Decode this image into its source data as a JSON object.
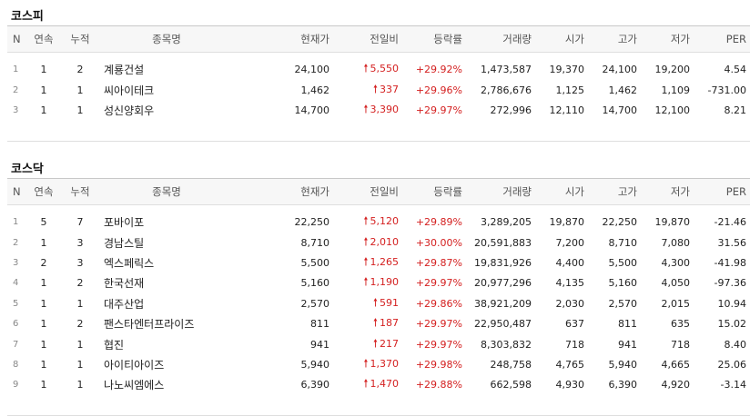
{
  "columns": {
    "n": "N",
    "streak": "연속",
    "cumulative": "누적",
    "name": "종목명",
    "price": "현재가",
    "change": "전일비",
    "rate": "등락률",
    "volume": "거래량",
    "open": "시가",
    "high": "고가",
    "low": "저가",
    "per": "PER"
  },
  "kospi": {
    "title": "코스피",
    "rows": [
      {
        "n": "1",
        "streak": "1",
        "cumulative": "2",
        "name": "계룡건설",
        "price": "24,100",
        "change": "5,550",
        "rate": "+29.92%",
        "volume": "1,473,587",
        "open": "19,370",
        "high": "24,100",
        "low": "19,200",
        "per": "4.54"
      },
      {
        "n": "2",
        "streak": "1",
        "cumulative": "1",
        "name": "씨아이테크",
        "price": "1,462",
        "change": "337",
        "rate": "+29.96%",
        "volume": "2,786,676",
        "open": "1,125",
        "high": "1,462",
        "low": "1,109",
        "per": "-731.00"
      },
      {
        "n": "3",
        "streak": "1",
        "cumulative": "1",
        "name": "성신양회우",
        "price": "14,700",
        "change": "3,390",
        "rate": "+29.97%",
        "volume": "272,996",
        "open": "12,110",
        "high": "14,700",
        "low": "12,100",
        "per": "8.21"
      }
    ]
  },
  "kosdaq": {
    "title": "코스닥",
    "rows": [
      {
        "n": "1",
        "streak": "5",
        "cumulative": "7",
        "name": "포바이포",
        "price": "22,250",
        "change": "5,120",
        "rate": "+29.89%",
        "volume": "3,289,205",
        "open": "19,870",
        "high": "22,250",
        "low": "19,870",
        "per": "-21.46"
      },
      {
        "n": "2",
        "streak": "1",
        "cumulative": "3",
        "name": "경남스틸",
        "price": "8,710",
        "change": "2,010",
        "rate": "+30.00%",
        "volume": "20,591,883",
        "open": "7,200",
        "high": "8,710",
        "low": "7,080",
        "per": "31.56"
      },
      {
        "n": "3",
        "streak": "2",
        "cumulative": "3",
        "name": "엑스페릭스",
        "price": "5,500",
        "change": "1,265",
        "rate": "+29.87%",
        "volume": "19,831,926",
        "open": "4,400",
        "high": "5,500",
        "low": "4,300",
        "per": "-41.98"
      },
      {
        "n": "4",
        "streak": "1",
        "cumulative": "2",
        "name": "한국선재",
        "price": "5,160",
        "change": "1,190",
        "rate": "+29.97%",
        "volume": "20,977,296",
        "open": "4,135",
        "high": "5,160",
        "low": "4,050",
        "per": "-97.36"
      },
      {
        "n": "5",
        "streak": "1",
        "cumulative": "1",
        "name": "대주산업",
        "price": "2,570",
        "change": "591",
        "rate": "+29.86%",
        "volume": "38,921,209",
        "open": "2,030",
        "high": "2,570",
        "low": "2,015",
        "per": "10.94"
      },
      {
        "n": "6",
        "streak": "1",
        "cumulative": "2",
        "name": "팬스타엔터프라이즈",
        "price": "811",
        "change": "187",
        "rate": "+29.97%",
        "volume": "22,950,487",
        "open": "637",
        "high": "811",
        "low": "635",
        "per": "15.02"
      },
      {
        "n": "7",
        "streak": "1",
        "cumulative": "1",
        "name": "협진",
        "price": "941",
        "change": "217",
        "rate": "+29.97%",
        "volume": "8,303,832",
        "open": "718",
        "high": "941",
        "low": "718",
        "per": "8.40"
      },
      {
        "n": "8",
        "streak": "1",
        "cumulative": "1",
        "name": "아이티아이즈",
        "price": "5,940",
        "change": "1,370",
        "rate": "+29.98%",
        "volume": "248,758",
        "open": "4,765",
        "high": "5,940",
        "low": "4,665",
        "per": "25.06"
      },
      {
        "n": "9",
        "streak": "1",
        "cumulative": "1",
        "name": "나노씨엠에스",
        "price": "6,390",
        "change": "1,470",
        "rate": "+29.88%",
        "volume": "662,598",
        "open": "4,930",
        "high": "6,390",
        "low": "4,920",
        "per": "-3.14"
      }
    ]
  },
  "colors": {
    "up": "#d42020",
    "header_bg": "#f7f7f7"
  },
  "icons": {
    "change_direction": "up-arrow-icon",
    "up_arrow_glyph": "🠕"
  }
}
